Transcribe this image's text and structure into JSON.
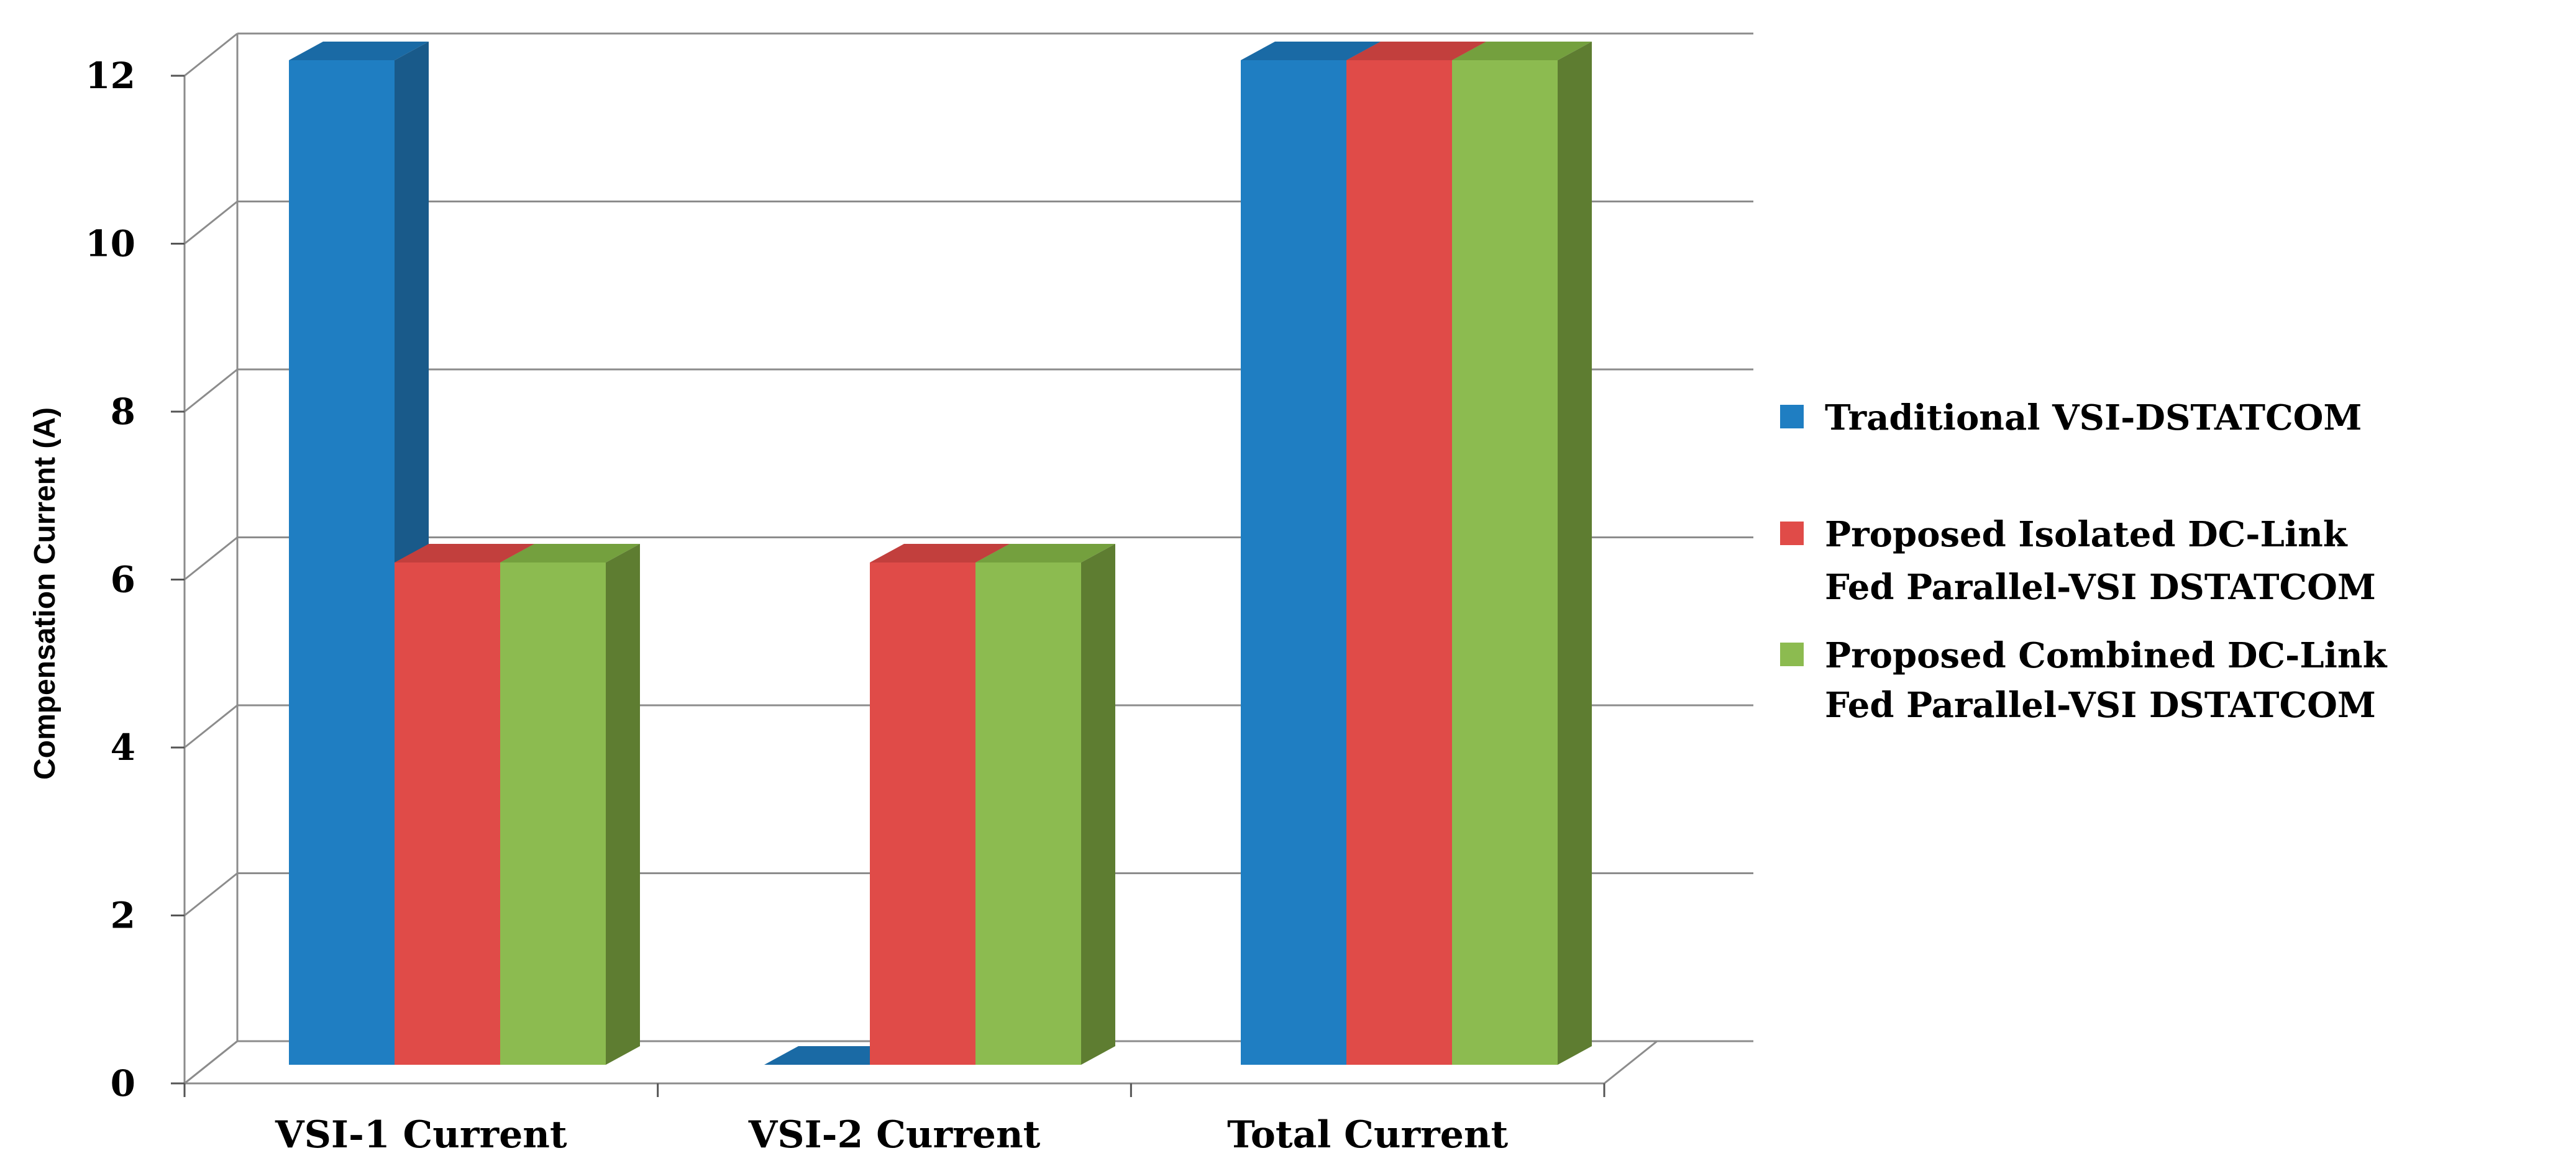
{
  "chart_data": {
    "type": "bar",
    "three_d": true,
    "ylabel": "Compensation Current (A)",
    "xlabel": "",
    "title": "",
    "ylim": [
      0,
      12
    ],
    "yticks": [
      "0",
      "2",
      "4",
      "6",
      "8",
      "10",
      "12"
    ],
    "grid": true,
    "legend_position": "right",
    "categories": [
      "VSI-1 Current",
      "VSI-2 Current",
      "Total Current"
    ],
    "series": [
      {
        "name": "Traditional VSI-DSTATCOM",
        "name_lines": [
          "Traditional VSI-DSTATCOM"
        ],
        "color": "#1F7EC2",
        "side_color": "#195A8A",
        "top_color": "#1A6AA5",
        "values": [
          12,
          0,
          12
        ]
      },
      {
        "name": "Proposed Isolated DC-Link Fed Parallel-VSI DSTATCOM",
        "name_lines": [
          "Proposed Isolated DC-Link",
          "Fed Parallel-VSI DSTATCOM"
        ],
        "color": "#E04B48",
        "side_color": "#A33533",
        "top_color": "#C23F3D",
        "values": [
          6,
          6,
          12
        ]
      },
      {
        "name": "Proposed Combined DC-Link Fed Parallel-VSI DSTATCOM",
        "name_lines": [
          "Proposed Combined DC-Link",
          "Fed Parallel-VSI DSTATCOM"
        ],
        "color": "#8CBB50",
        "side_color": "#5E7D31",
        "top_color": "#74A03E",
        "values": [
          6,
          6,
          12
        ]
      }
    ]
  }
}
